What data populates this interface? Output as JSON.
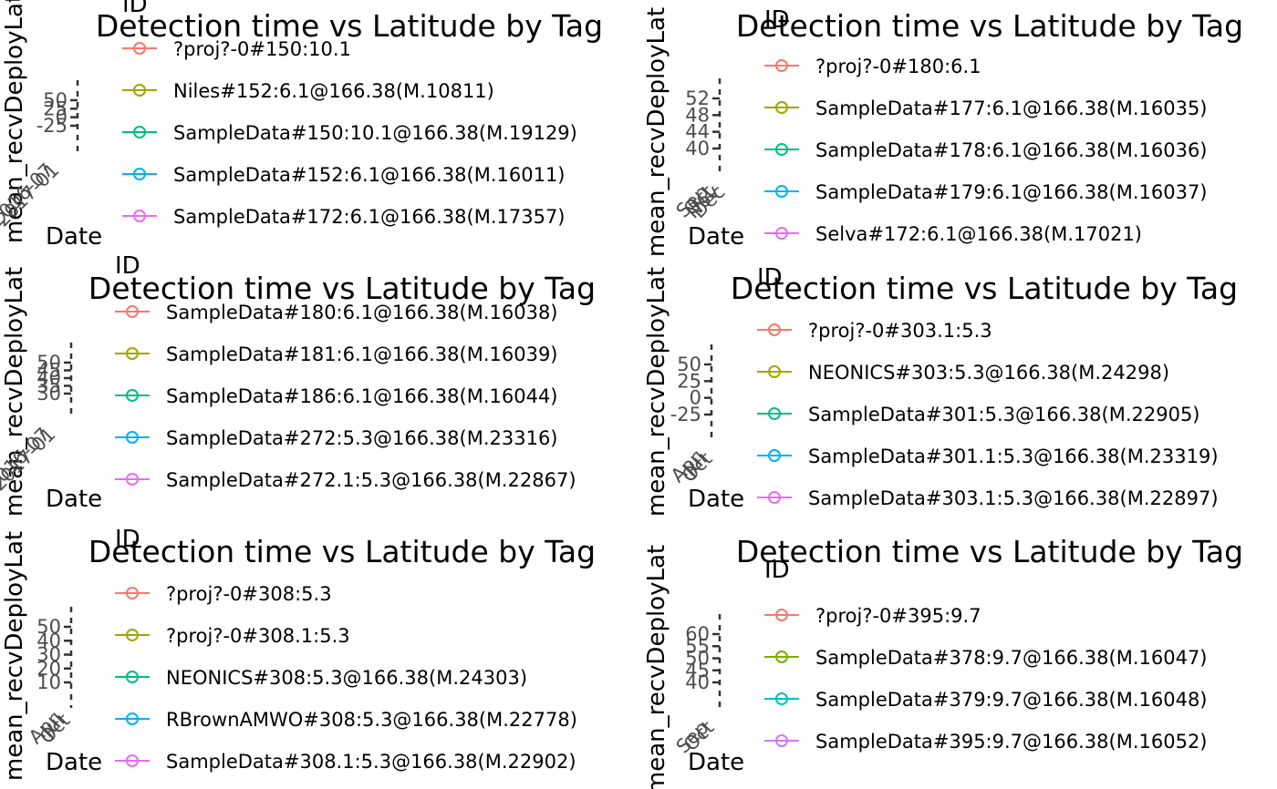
{
  "chart_data": [
    {
      "type": "line",
      "title": "Detection time vs Latitude by Tag",
      "xlabel": "Date",
      "ylabel": "mean_recvDeployLat",
      "legend_title": "ID",
      "y_ticks": [
        "50",
        "25",
        "0",
        "-25"
      ],
      "x_ticks": [
        "2016-07",
        "2017-01"
      ],
      "series": [
        {
          "name": "?proj?-0#150:10.1",
          "color": "#F8766D"
        },
        {
          "name": "Niles#152:6.1@166.38(M.10811)",
          "color": "#A3A500"
        },
        {
          "name": "SampleData#150:10.1@166.38(M.19129)",
          "color": "#00BF7D"
        },
        {
          "name": "SampleData#152:6.1@166.38(M.16011)",
          "color": "#00B0F6"
        },
        {
          "name": "SampleData#172:6.1@166.38(M.17357)",
          "color": "#E76BF3"
        }
      ]
    },
    {
      "type": "line",
      "title": "Detection time vs Latitude by Tag",
      "xlabel": "Date",
      "ylabel": "mean_recvDeployLat",
      "legend_title": "ID",
      "y_ticks": [
        "52",
        "48",
        "44",
        "40"
      ],
      "x_ticks": [
        "Sep",
        "Oct",
        "Nov",
        "Dec"
      ],
      "series": [
        {
          "name": "?proj?-0#180:6.1",
          "color": "#F8766D"
        },
        {
          "name": "SampleData#177:6.1@166.38(M.16035)",
          "color": "#A3A500"
        },
        {
          "name": "SampleData#178:6.1@166.38(M.16036)",
          "color": "#00BF7D"
        },
        {
          "name": "SampleData#179:6.1@166.38(M.16037)",
          "color": "#00B0F6"
        },
        {
          "name": "Selva#172:6.1@166.38(M.17021)",
          "color": "#E76BF3"
        }
      ]
    },
    {
      "type": "line",
      "title": "Detection time vs Latitude by Tag",
      "xlabel": "Date",
      "ylabel": "mean_recvDeployLat",
      "legend_title": "ID",
      "y_ticks": [
        "50",
        "45",
        "40",
        "35",
        "30"
      ],
      "x_ticks": [
        "2016-07",
        "2017-01"
      ],
      "series": [
        {
          "name": "SampleData#180:6.1@166.38(M.16038)",
          "color": "#F8766D"
        },
        {
          "name": "SampleData#181:6.1@166.38(M.16039)",
          "color": "#A3A500"
        },
        {
          "name": "SampleData#186:6.1@166.38(M.16044)",
          "color": "#00BF7D"
        },
        {
          "name": "SampleData#272:5.3@166.38(M.23316)",
          "color": "#00B0F6"
        },
        {
          "name": "SampleData#272.1:5.3@166.38(M.22867)",
          "color": "#E76BF3"
        }
      ]
    },
    {
      "type": "line",
      "title": "Detection time vs Latitude by Tag",
      "xlabel": "Date",
      "ylabel": "mean_recvDeployLat",
      "legend_title": "ID",
      "y_ticks": [
        "50",
        "25",
        "0",
        "-25"
      ],
      "x_ticks": [
        "Apr",
        "Jul",
        "Oct"
      ],
      "series": [
        {
          "name": "?proj?-0#303.1:5.3",
          "color": "#F8766D"
        },
        {
          "name": "NEONICS#303:5.3@166.38(M.24298)",
          "color": "#A3A500"
        },
        {
          "name": "SampleData#301:5.3@166.38(M.22905)",
          "color": "#00BF7D"
        },
        {
          "name": "SampleData#301.1:5.3@166.38(M.23319)",
          "color": "#00B0F6"
        },
        {
          "name": "SampleData#303.1:5.3@166.38(M.22897)",
          "color": "#E76BF3"
        }
      ]
    },
    {
      "type": "line",
      "title": "Detection time vs Latitude by Tag",
      "xlabel": "Date",
      "ylabel": "mean_recvDeployLat",
      "legend_title": "ID",
      "y_ticks": [
        "50",
        "40",
        "30",
        "20",
        "10"
      ],
      "x_ticks": [
        "Apr",
        "Jul",
        "Oct"
      ],
      "series": [
        {
          "name": "?proj?-0#308:5.3",
          "color": "#F8766D"
        },
        {
          "name": "?proj?-0#308.1:5.3",
          "color": "#A3A500"
        },
        {
          "name": "NEONICS#308:5.3@166.38(M.24303)",
          "color": "#00BF7D"
        },
        {
          "name": "RBrownAMWO#308:5.3@166.38(M.22778)",
          "color": "#00B0F6"
        },
        {
          "name": "SampleData#308.1:5.3@166.38(M.22902)",
          "color": "#E76BF3"
        }
      ]
    },
    {
      "type": "line",
      "title": "Detection time vs Latitude by Tag",
      "xlabel": "Date",
      "ylabel": "mean_recvDeployLat",
      "legend_title": "ID",
      "y_ticks": [
        "60",
        "55",
        "50",
        "45",
        "40"
      ],
      "x_ticks": [
        "Sep",
        "Oct"
      ],
      "series": [
        {
          "name": "?proj?-0#395:9.7",
          "color": "#F8766D"
        },
        {
          "name": "SampleData#378:9.7@166.38(M.16047)",
          "color": "#7CAE00"
        },
        {
          "name": "SampleData#379:9.7@166.38(M.16048)",
          "color": "#00BFC4"
        },
        {
          "name": "SampleData#395:9.7@166.38(M.16052)",
          "color": "#C77CFF"
        }
      ]
    }
  ]
}
